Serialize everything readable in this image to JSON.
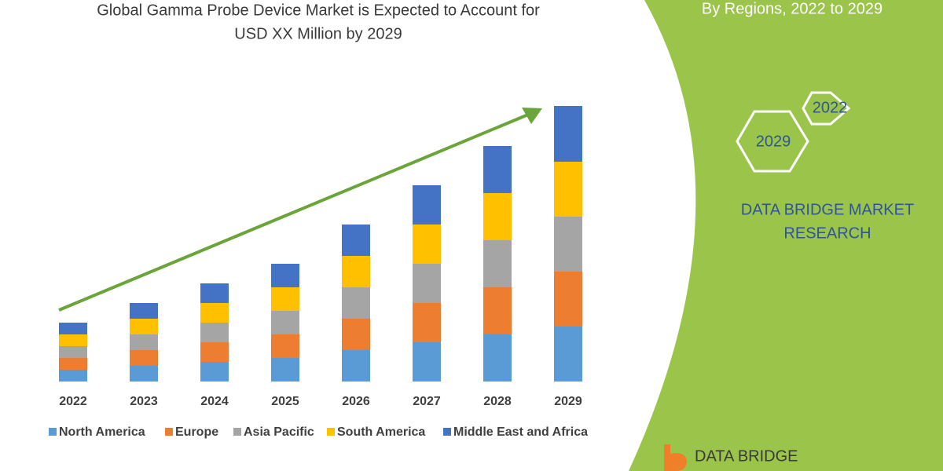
{
  "chart_data": {
    "type": "bar",
    "stacked": true,
    "title": [
      "Global Gamma Probe Device Market is Expected to Account for",
      "USD XX Million by 2029"
    ],
    "categories": [
      "2022",
      "2023",
      "2024",
      "2025",
      "2026",
      "2027",
      "2028",
      "2029"
    ],
    "series": [
      {
        "name": "North America",
        "color": "#5b9bd5",
        "values": [
          15,
          20,
          25,
          30,
          40,
          50,
          60,
          70
        ]
      },
      {
        "name": "Europe",
        "color": "#ed7d31",
        "values": [
          15,
          20,
          25,
          30,
          40,
          50,
          60,
          70
        ]
      },
      {
        "name": "Asia Pacific",
        "color": "#a5a5a5",
        "values": [
          15,
          20,
          25,
          30,
          40,
          50,
          60,
          70
        ]
      },
      {
        "name": "South America",
        "color": "#ffc000",
        "values": [
          15,
          20,
          25,
          30,
          40,
          50,
          60,
          70
        ]
      },
      {
        "name": "Middle East and Africa",
        "color": "#4472c4",
        "values": [
          15,
          20,
          25,
          30,
          40,
          50,
          60,
          71
        ]
      }
    ]
  },
  "panel": {
    "subtitle": "By Regions, 2022 to 2029",
    "hexagons": [
      "2022",
      "2029"
    ],
    "brand": [
      "DATA BRIDGE MARKET",
      "RESEARCH"
    ],
    "logo": "DATA BRIDGE"
  }
}
